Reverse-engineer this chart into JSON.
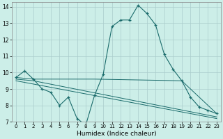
{
  "xlabel": "Humidex (Indice chaleur)",
  "background_color": "#cceee8",
  "grid_color": "#aacccc",
  "line_color": "#1a6b6b",
  "xlim": [
    -0.5,
    23.5
  ],
  "ylim": [
    7,
    14.3
  ],
  "xticks": [
    0,
    1,
    2,
    3,
    4,
    5,
    6,
    7,
    8,
    9,
    10,
    11,
    12,
    13,
    14,
    15,
    16,
    17,
    18,
    19,
    20,
    21,
    22,
    23
  ],
  "yticks": [
    7,
    8,
    9,
    10,
    11,
    12,
    13,
    14
  ],
  "series_main": {
    "x": [
      0,
      1,
      2,
      3,
      4,
      5,
      6,
      7,
      8,
      9,
      10,
      11,
      12,
      13,
      14,
      15,
      16,
      17,
      18,
      19,
      20,
      21,
      22,
      23
    ],
    "y": [
      9.7,
      10.1,
      9.6,
      9.0,
      8.8,
      8.0,
      8.5,
      7.2,
      6.8,
      8.6,
      9.9,
      12.8,
      13.2,
      13.2,
      14.1,
      13.6,
      12.9,
      11.1,
      10.2,
      9.5,
      8.5,
      7.9,
      7.7,
      7.5
    ]
  },
  "series_extra": [
    {
      "x": [
        0,
        2,
        9,
        19,
        23
      ],
      "y": [
        9.7,
        9.6,
        9.6,
        9.5,
        7.5
      ]
    },
    {
      "x": [
        0,
        2,
        23
      ],
      "y": [
        9.6,
        9.5,
        7.3
      ]
    },
    {
      "x": [
        0,
        23
      ],
      "y": [
        9.5,
        7.2
      ]
    }
  ]
}
